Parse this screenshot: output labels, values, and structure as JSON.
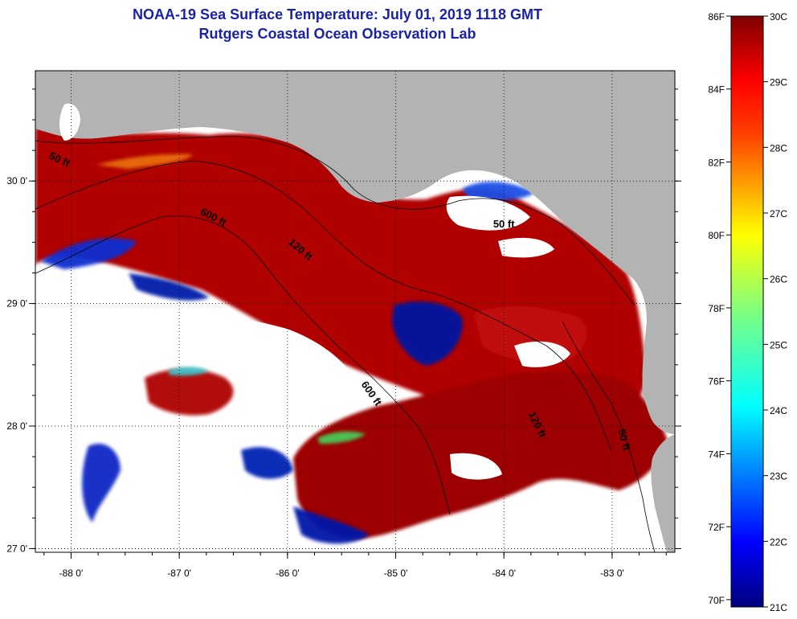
{
  "header": {
    "title": "NOAA-19 Sea Surface Temperature:  July 01, 2019 1118 GMT",
    "subtitle": "Rutgers Coastal Ocean Observation Lab"
  },
  "map": {
    "lon_range": [
      -88.33,
      -82.42
    ],
    "lat_range": [
      26.97,
      30.9
    ],
    "lon_ticks": [
      {
        "value": -88,
        "label": "-88 0'"
      },
      {
        "value": -87,
        "label": "-87 0'"
      },
      {
        "value": -86,
        "label": "-86 0'"
      },
      {
        "value": -85,
        "label": "-85 0'"
      },
      {
        "value": -84,
        "label": "-84 0'"
      },
      {
        "value": -83,
        "label": "-83 0'"
      }
    ],
    "lat_ticks": [
      {
        "value": 30,
        "label": "30 0'"
      },
      {
        "value": 29,
        "label": "29 0'"
      },
      {
        "value": 28,
        "label": "28 0'"
      },
      {
        "value": 27,
        "label": "27 0'"
      }
    ],
    "contour_labels": [
      {
        "text": "50 ft",
        "lon": -88.12,
        "lat": 30.15,
        "rotate": 25
      },
      {
        "text": "600 ft",
        "lon": -86.7,
        "lat": 29.68,
        "rotate": 28
      },
      {
        "text": "120 ft",
        "lon": -85.9,
        "lat": 29.42,
        "rotate": 40
      },
      {
        "text": "50 ft",
        "lon": -84.0,
        "lat": 29.62,
        "rotate": 0
      },
      {
        "text": "600 ft",
        "lon": -85.25,
        "lat": 28.25,
        "rotate": 55
      },
      {
        "text": "120 ft",
        "lon": -83.72,
        "lat": 28.0,
        "rotate": 65
      },
      {
        "text": "50 ft",
        "lon": -82.92,
        "lat": 27.88,
        "rotate": 75
      }
    ],
    "colors": {
      "land": "#b3b3b3",
      "cloud": "#ffffff",
      "warm": "#a80000",
      "cool": "#001eb0"
    }
  },
  "colorbar": {
    "min_c": 21,
    "max_c": 30,
    "fahrenheit_labels": [
      "86F",
      "84F",
      "82F",
      "80F",
      "78F",
      "76F",
      "74F",
      "72F",
      "70F"
    ],
    "celsius_labels": [
      "30C",
      "29C",
      "28C",
      "27C",
      "26C",
      "25C",
      "24C",
      "23C",
      "22C",
      "21C"
    ]
  }
}
